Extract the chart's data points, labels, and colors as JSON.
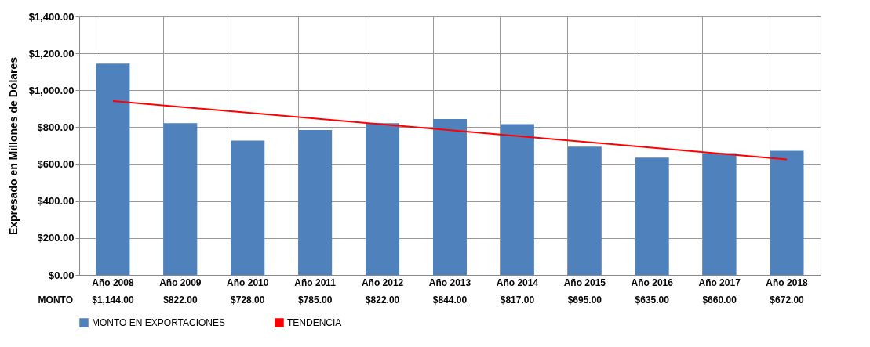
{
  "chart_data": {
    "type": "bar",
    "ylabel": "Expresado en Millones de Dólares",
    "categories": [
      "Año 2008",
      "Año 2009",
      "Año 2010",
      "Año 2011",
      "Año 2012",
      "Año 2013",
      "Año 2014",
      "Año 2015",
      "Año 2016",
      "Año 2017",
      "Año 2018"
    ],
    "series": [
      {
        "name": "MONTO EN EXPORTACIONES",
        "color": "#4f81bd",
        "values": [
          1144,
          822,
          728,
          785,
          822,
          844,
          817,
          695,
          635,
          660,
          672
        ],
        "value_labels": [
          "$1,144.00",
          "$822.00",
          "$728.00",
          "$785.00",
          "$822.00",
          "$844.00",
          "$817.00",
          "$695.00",
          "$635.00",
          "$660.00",
          "$672.00"
        ]
      },
      {
        "name": "TENDENCIA",
        "type": "line",
        "color": "#ff0000",
        "x": [
          "Año 2008",
          "Año 2018"
        ],
        "values": [
          942,
          626
        ]
      }
    ],
    "ylim": [
      0,
      1400
    ],
    "yticks": [
      {
        "value": 0,
        "label": "$0.00"
      },
      {
        "value": 200,
        "label": "$200.00"
      },
      {
        "value": 400,
        "label": "$400.00"
      },
      {
        "value": 600,
        "label": "$600.00"
      },
      {
        "value": 800,
        "label": "$800.00"
      },
      {
        "value": 1000,
        "label": "$1,000.00"
      },
      {
        "value": 1200,
        "label": "$1,200.00"
      },
      {
        "value": 1400,
        "label": "$1,400.00"
      }
    ],
    "grid": true,
    "legend": "bottom left",
    "annotations": [
      "MONTO"
    ]
  }
}
